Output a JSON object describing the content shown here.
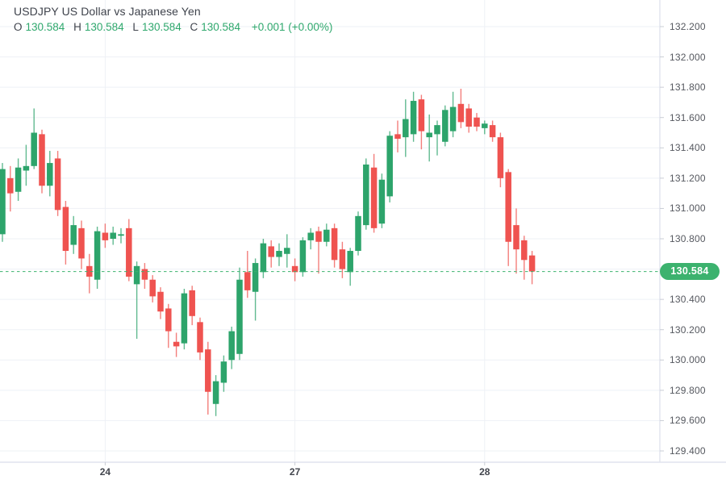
{
  "header": {
    "title": "USDJPY US Dollar vs Japanese Yen",
    "ohlc": {
      "o_label": "O",
      "o_value": "130.584",
      "h_label": "H",
      "h_value": "130.584",
      "l_label": "L",
      "l_value": "130.584",
      "c_label": "C",
      "c_value": "130.584",
      "change": "+0.001 (+0.00%)"
    }
  },
  "colors": {
    "up": "#2da46b",
    "down": "#ef5350",
    "accent_green": "#3cb26e",
    "value_text_green": "#2fa86d",
    "grid": "#eef1f6",
    "axis_border": "#e0e3ee",
    "tick_mark": "#c9ccd4",
    "price_text": "#55585f",
    "time_text": "#42454d",
    "badge_text": "#ffffff"
  },
  "price_axis": {
    "ticks": [
      "132.200",
      "132.000",
      "131.800",
      "131.600",
      "131.400",
      "131.200",
      "131.000",
      "130.800",
      "130.400",
      "130.200",
      "130.000",
      "129.800",
      "129.600",
      "129.400"
    ],
    "last_price_label": "130.584"
  },
  "time_axis": {
    "ticks": [
      {
        "label": "24",
        "index": 13
      },
      {
        "label": "27",
        "index": 37
      },
      {
        "label": "28",
        "index": 61
      }
    ]
  },
  "chart_data": {
    "type": "candlestick",
    "symbol": "USDJPY",
    "title": "USDJPY US Dollar vs Japanese Yen",
    "last_price": 130.584,
    "change": "+0.001 (+0.00%)",
    "ylim_visible": [
      129.33,
      132.38
    ],
    "y_ticks": [
      129.4,
      129.6,
      129.8,
      130.0,
      130.2,
      130.4,
      130.6,
      130.8,
      131.0,
      131.2,
      131.4,
      131.6,
      131.8,
      132.0,
      132.2
    ],
    "x_tick_labels": [
      "24",
      "27",
      "28"
    ],
    "grid": true,
    "legend_position": "none",
    "candles_ohlc": [
      [
        130.83,
        131.3,
        130.78,
        131.26
      ],
      [
        131.2,
        131.28,
        130.98,
        131.1
      ],
      [
        131.11,
        131.33,
        131.05,
        131.27
      ],
      [
        131.25,
        131.42,
        131.15,
        131.28
      ],
      [
        131.28,
        131.66,
        131.26,
        131.5
      ],
      [
        131.49,
        131.52,
        131.1,
        131.15
      ],
      [
        131.15,
        131.38,
        131.08,
        131.3
      ],
      [
        131.33,
        131.38,
        130.95,
        130.99
      ],
      [
        131.01,
        131.05,
        130.63,
        130.72
      ],
      [
        130.76,
        130.95,
        130.7,
        130.89
      ],
      [
        130.87,
        130.92,
        130.6,
        130.67
      ],
      [
        130.62,
        130.7,
        130.44,
        130.55
      ],
      [
        130.53,
        130.88,
        130.47,
        130.85
      ],
      [
        130.84,
        130.9,
        130.74,
        130.79
      ],
      [
        130.8,
        130.88,
        130.76,
        130.84
      ],
      [
        130.82,
        130.87,
        130.77,
        130.83
      ],
      [
        130.87,
        130.93,
        130.52,
        130.55
      ],
      [
        130.5,
        130.65,
        130.14,
        130.62
      ],
      [
        130.6,
        130.64,
        130.47,
        130.53
      ],
      [
        130.53,
        130.56,
        130.38,
        130.42
      ],
      [
        130.45,
        130.48,
        130.27,
        130.32
      ],
      [
        130.34,
        130.37,
        130.08,
        130.19
      ],
      [
        130.12,
        130.18,
        130.02,
        130.09
      ],
      [
        130.11,
        130.47,
        130.07,
        130.44
      ],
      [
        130.46,
        130.49,
        130.23,
        130.29
      ],
      [
        130.25,
        130.28,
        130.0,
        130.05
      ],
      [
        130.07,
        130.12,
        129.64,
        129.79
      ],
      [
        129.71,
        129.9,
        129.63,
        129.86
      ],
      [
        129.85,
        130.03,
        129.79,
        129.99
      ],
      [
        130.0,
        130.22,
        129.94,
        130.19
      ],
      [
        130.04,
        130.61,
        130.0,
        130.53
      ],
      [
        130.58,
        130.72,
        130.41,
        130.46
      ],
      [
        130.45,
        130.67,
        130.26,
        130.64
      ],
      [
        130.58,
        130.8,
        130.54,
        130.77
      ],
      [
        130.75,
        130.79,
        130.61,
        130.68
      ],
      [
        130.68,
        130.77,
        130.62,
        130.72
      ],
      [
        130.7,
        130.83,
        130.61,
        130.74
      ],
      [
        130.62,
        130.67,
        130.52,
        130.58
      ],
      [
        130.58,
        130.81,
        130.55,
        130.79
      ],
      [
        130.79,
        130.87,
        130.73,
        130.84
      ],
      [
        130.85,
        130.88,
        130.57,
        130.78
      ],
      [
        130.78,
        130.9,
        130.75,
        130.86
      ],
      [
        130.87,
        130.9,
        130.61,
        130.66
      ],
      [
        130.73,
        130.78,
        130.54,
        130.6
      ],
      [
        130.58,
        130.74,
        130.49,
        130.72
      ],
      [
        130.72,
        130.98,
        130.69,
        130.95
      ],
      [
        130.89,
        131.33,
        130.86,
        131.29
      ],
      [
        131.27,
        131.36,
        130.84,
        130.87
      ],
      [
        130.9,
        131.23,
        130.87,
        131.19
      ],
      [
        131.08,
        131.51,
        131.04,
        131.48
      ],
      [
        131.49,
        131.58,
        131.37,
        131.46
      ],
      [
        131.47,
        131.72,
        131.34,
        131.59
      ],
      [
        131.49,
        131.77,
        131.44,
        131.71
      ],
      [
        131.72,
        131.75,
        131.39,
        131.51
      ],
      [
        131.47,
        131.62,
        131.31,
        131.5
      ],
      [
        131.49,
        131.58,
        131.35,
        131.55
      ],
      [
        131.44,
        131.68,
        131.41,
        131.65
      ],
      [
        131.51,
        131.77,
        131.47,
        131.67
      ],
      [
        131.69,
        131.79,
        131.53,
        131.57
      ],
      [
        131.66,
        131.69,
        131.5,
        131.54
      ],
      [
        131.6,
        131.63,
        131.51,
        131.54
      ],
      [
        131.53,
        131.58,
        131.49,
        131.56
      ],
      [
        131.55,
        131.58,
        131.44,
        131.47
      ],
      [
        131.47,
        131.5,
        131.14,
        131.2
      ],
      [
        131.24,
        131.26,
        130.62,
        130.78
      ],
      [
        130.89,
        131.0,
        130.57,
        130.73
      ],
      [
        130.79,
        130.82,
        130.53,
        130.66
      ],
      [
        130.69,
        130.72,
        130.5,
        130.584
      ]
    ]
  }
}
